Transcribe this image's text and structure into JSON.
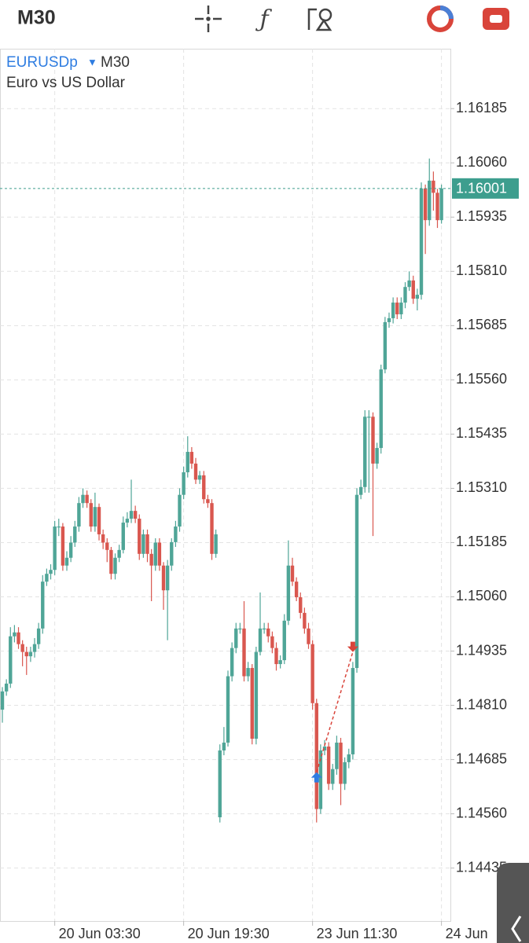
{
  "toolbar": {
    "timeframe": "M30"
  },
  "chart_data": {
    "type": "candlestick",
    "symbol": "EURUSDp",
    "timeframe": "M30",
    "subtitle": "Euro vs US Dollar",
    "up_color": "#4fa597",
    "down_color": "#d9574f",
    "grid": true,
    "xlim": [
      -0.59,
      111.22
    ],
    "ylim": [
      1.14313,
      1.16323
    ],
    "yticks": [
      1.16185,
      {
        "value": 1.1606,
        "label": "1.16060"
      },
      1.15935,
      {
        "value": 1.1581,
        "label": "1.15810"
      },
      1.15685,
      {
        "value": 1.1556,
        "label": "1.15560"
      },
      1.15435,
      {
        "value": 1.1531,
        "label": "1.15310"
      },
      1.15185,
      {
        "value": 1.1506,
        "label": "1.15060"
      },
      1.14935,
      {
        "value": 1.1481,
        "label": "1.14810"
      },
      1.14685,
      {
        "value": 1.1456,
        "label": "1.14560"
      },
      1.14435
    ],
    "xticks": [
      {
        "value": 13,
        "label": "20 Jun 03:30"
      },
      {
        "value": 45,
        "label": "20 Jun 19:30"
      },
      {
        "value": 77,
        "label": "23 Jun 11:30"
      },
      {
        "value": 109,
        "label": "24 Jun"
      }
    ],
    "current_price": 1.16001,
    "current_price_color": "#3d9e8e",
    "arrows": [
      {
        "x": 78,
        "price": 1.14656,
        "direction": "up",
        "color": "#2f7de1"
      },
      {
        "x": 87,
        "price": 1.14933,
        "direction": "down",
        "color": "#d9443a"
      }
    ],
    "open": [
      1.148,
      1.14842,
      1.1486,
      1.14969,
      1.14978,
      1.14951,
      1.14933,
      1.14923,
      1.14933,
      1.14951,
      1.14987,
      1.15095,
      1.15113,
      1.15122,
      1.15222,
      1.15222,
      1.15132,
      1.1515,
      1.15185,
      1.15222,
      1.15276,
      1.15295,
      1.15276,
      1.15222,
      1.15267,
      1.15204,
      1.15185,
      1.15168,
      1.15113,
      1.1515,
      1.15168,
      1.15231,
      1.1524,
      1.15258,
      1.1524,
      1.15159,
      1.15204,
      1.15159,
      1.15132,
      1.15185,
      1.15132,
      1.15075,
      1.15132,
      1.15186,
      1.15222,
      1.15295,
      1.15347,
      1.15394,
      1.15367,
      1.1533,
      1.1534,
      1.15285,
      1.15276,
      1.15159,
      1.14552,
      1.14706,
      1.14724,
      1.14877,
      1.14942,
      1.14987,
      1.14987,
      1.14877,
      1.14896,
      1.14733,
      1.14933,
      1.14987,
      1.14987,
      1.14969,
      1.14942,
      1.14905,
      1.14914,
      1.15005,
      1.15132,
      1.15095,
      1.15059,
      1.15023,
      1.14987,
      1.14951,
      1.14815,
      1.14571,
      1.14706,
      1.14715,
      1.14629,
      1.14663,
      1.14724,
      1.14629,
      1.14679,
      1.14697,
      1.14896,
      1.15295,
      1.15313,
      1.15475,
      1.15475,
      1.15367,
      1.15403,
      1.15584,
      1.15693,
      1.15702,
      1.15738,
      1.15711,
      1.15738,
      1.15774,
      1.15789,
      1.15747,
      1.15756,
      1.16001,
      1.15928,
      1.16019,
      1.15991,
      1.15928
    ],
    "high": [
      1.14852,
      1.1487,
      1.1499,
      1.14995,
      1.1499,
      1.1496,
      1.14945,
      1.14945,
      1.14965,
      1.15,
      1.1511,
      1.15125,
      1.15135,
      1.15235,
      1.1524,
      1.1523,
      1.15165,
      1.152,
      1.15235,
      1.1529,
      1.1531,
      1.15305,
      1.15285,
      1.153,
      1.15275,
      1.15215,
      1.15195,
      1.15175,
      1.1516,
      1.1518,
      1.15245,
      1.15255,
      1.1533,
      1.1527,
      1.1525,
      1.15215,
      1.15215,
      1.1517,
      1.15195,
      1.15195,
      1.1514,
      1.15145,
      1.15195,
      1.15235,
      1.1531,
      1.1536,
      1.1543,
      1.15405,
      1.1538,
      1.1535,
      1.1535,
      1.15295,
      1.15285,
      1.15215,
      1.1472,
      1.1476,
      1.1489,
      1.14955,
      1.15,
      1.15,
      1.1505,
      1.1491,
      1.14905,
      1.14945,
      1.1507,
      1.15,
      1.15,
      1.1498,
      1.14955,
      1.14925,
      1.1502,
      1.1519,
      1.1515,
      1.15105,
      1.1507,
      1.15035,
      1.15,
      1.1496,
      1.14825,
      1.1472,
      1.1473,
      1.14725,
      1.14675,
      1.1474,
      1.14735,
      1.1469,
      1.1471,
      1.1491,
      1.1531,
      1.1533,
      1.1549,
      1.1549,
      1.15485,
      1.15415,
      1.15595,
      1.15705,
      1.15715,
      1.1575,
      1.1575,
      1.1575,
      1.15785,
      1.1581,
      1.158,
      1.1577,
      1.16015,
      1.1601,
      1.1607,
      1.1604,
      1.16,
      1.1601
    ],
    "low": [
      1.1477,
      1.14832,
      1.1485,
      1.14955,
      1.1494,
      1.149,
      1.1488,
      1.1491,
      1.1492,
      1.1494,
      1.14975,
      1.15085,
      1.151,
      1.1511,
      1.152,
      1.1512,
      1.1512,
      1.1514,
      1.15175,
      1.1521,
      1.15265,
      1.15265,
      1.1521,
      1.1521,
      1.1519,
      1.1517,
      1.1514,
      1.151,
      1.151,
      1.1514,
      1.1516,
      1.1522,
      1.1523,
      1.1523,
      1.15145,
      1.1515,
      1.1514,
      1.1505,
      1.1512,
      1.1512,
      1.1503,
      1.1496,
      1.1512,
      1.15175,
      1.1521,
      1.15285,
      1.15335,
      1.15355,
      1.1532,
      1.1532,
      1.15275,
      1.15265,
      1.15145,
      1.1515,
      1.1454,
      1.14695,
      1.14715,
      1.14865,
      1.1493,
      1.14975,
      1.14865,
      1.14865,
      1.1472,
      1.1472,
      1.14925,
      1.14975,
      1.14955,
      1.1493,
      1.1489,
      1.14895,
      1.14905,
      1.14995,
      1.15085,
      1.1505,
      1.1501,
      1.14975,
      1.1494,
      1.148,
      1.1454,
      1.1456,
      1.14695,
      1.14615,
      1.14615,
      1.1465,
      1.1458,
      1.14615,
      1.14665,
      1.14685,
      1.14885,
      1.15285,
      1.153,
      1.153,
      1.152,
      1.15355,
      1.1539,
      1.15575,
      1.1568,
      1.1569,
      1.157,
      1.157,
      1.15725,
      1.15765,
      1.15735,
      1.1572,
      1.15745,
      1.1585,
      1.15915,
      1.1595,
      1.1591,
      1.1592
    ],
    "close": [
      1.14842,
      1.1486,
      1.14969,
      1.14978,
      1.14951,
      1.14933,
      1.14923,
      1.14933,
      1.14951,
      1.14987,
      1.15095,
      1.15113,
      1.15122,
      1.15222,
      1.15222,
      1.15132,
      1.1515,
      1.15185,
      1.15222,
      1.15276,
      1.15295,
      1.15276,
      1.15222,
      1.15267,
      1.15204,
      1.15185,
      1.15168,
      1.15113,
      1.1515,
      1.15168,
      1.15231,
      1.1524,
      1.15258,
      1.1524,
      1.15159,
      1.15204,
      1.15159,
      1.15132,
      1.15185,
      1.15132,
      1.15075,
      1.15132,
      1.15186,
      1.15222,
      1.15295,
      1.15347,
      1.15394,
      1.15367,
      1.1533,
      1.1534,
      1.15285,
      1.15276,
      1.15159,
      1.15204,
      1.14706,
      1.14724,
      1.14877,
      1.14942,
      1.14987,
      1.14987,
      1.14877,
      1.14896,
      1.14733,
      1.14933,
      1.14987,
      1.14987,
      1.14969,
      1.14942,
      1.14905,
      1.14914,
      1.15005,
      1.15132,
      1.15095,
      1.15059,
      1.15023,
      1.14987,
      1.14951,
      1.14815,
      1.14571,
      1.14706,
      1.14715,
      1.14629,
      1.14663,
      1.14724,
      1.14629,
      1.14679,
      1.14697,
      1.14896,
      1.15295,
      1.15313,
      1.15475,
      1.15475,
      1.15367,
      1.15403,
      1.15584,
      1.15693,
      1.15702,
      1.15738,
      1.15711,
      1.15738,
      1.15774,
      1.15789,
      1.15747,
      1.15756,
      1.16001,
      1.15928,
      1.16019,
      1.15991,
      1.15928,
      1.16001
    ]
  }
}
